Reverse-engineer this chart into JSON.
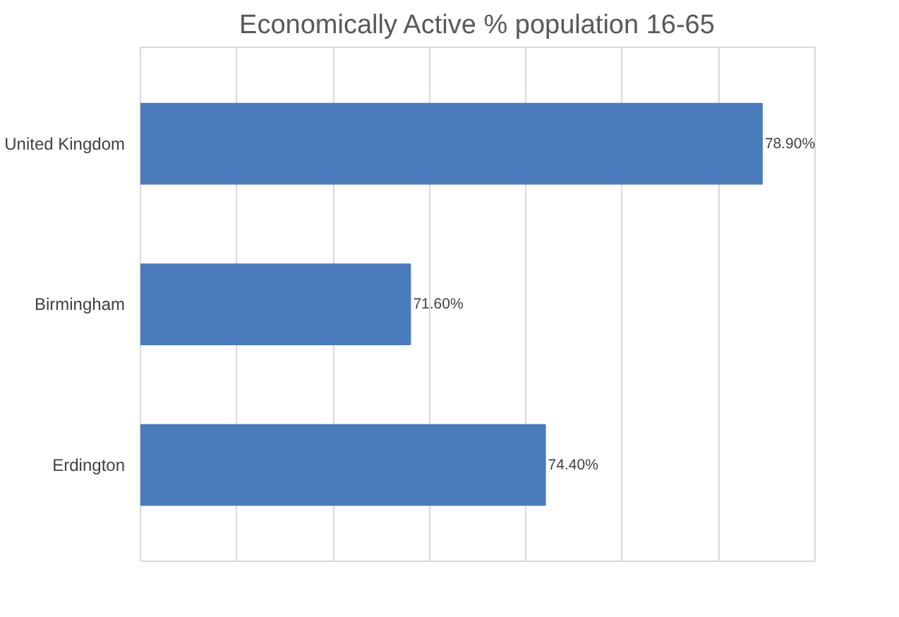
{
  "chart_data": {
    "type": "bar",
    "orientation": "horizontal",
    "title": "Economically Active % population 16-65",
    "categories": [
      "United Kingdom",
      "Birmingham",
      "Erdington"
    ],
    "values": [
      78.9,
      71.6,
      74.4
    ],
    "value_labels": [
      "78.90%",
      "71.60%",
      "74.40%"
    ],
    "color": "#4a7bbd",
    "xlim": [
      66,
      80
    ],
    "xticks": [
      {
        "value": 66,
        "label": null
      },
      {
        "value": 68,
        "label": null
      },
      {
        "value": 70,
        "label": null
      },
      {
        "value": 72,
        "label": null
      },
      {
        "value": 74,
        "label": null
      },
      {
        "value": 76,
        "label": null
      },
      {
        "value": 78,
        "label": null
      },
      {
        "value": 80,
        "label": null
      }
    ],
    "tick_labels": "y",
    "grid": "x"
  }
}
